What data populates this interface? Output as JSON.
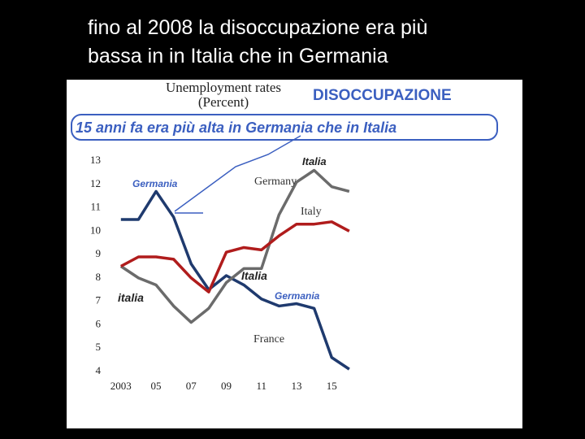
{
  "slide_title": [
    "fino al 2008 la disoccupazione era più",
    "bassa in in Italia che in Germania"
  ],
  "chart_data": {
    "type": "line",
    "title": "Unemployment rates",
    "subtitle": "(Percent)",
    "annotations": [
      "DISOCCUPAZIONE",
      "15 anni fa era più alta in Germania che in Italia",
      "Germania",
      "Italia",
      "italia",
      "Italia",
      "Germania"
    ],
    "x": [
      2003,
      2004,
      2005,
      2006,
      2007,
      2008,
      2009,
      2010,
      2011,
      2012,
      2013,
      2014,
      2015,
      2016
    ],
    "series": [
      {
        "name": "Germany",
        "color": "#1f3a6e",
        "values": [
          10.5,
          10.5,
          11.7,
          10.6,
          8.6,
          7.5,
          8.1,
          7.7,
          7.1,
          6.8,
          6.9,
          6.7,
          4.6,
          4.1
        ]
      },
      {
        "name": "Italy",
        "color": "#6b6b6b",
        "values": [
          8.5,
          8.0,
          7.7,
          6.8,
          6.1,
          6.7,
          7.8,
          8.4,
          8.4,
          10.7,
          12.1,
          12.6,
          11.9,
          11.7
        ]
      },
      {
        "name": "France",
        "color": "#b01c1c",
        "values": [
          8.5,
          8.9,
          8.9,
          8.8,
          8.0,
          7.4,
          9.1,
          9.3,
          9.2,
          9.8,
          10.3,
          10.3,
          10.4,
          10.0
        ]
      }
    ],
    "xlim": [
      2002.5,
      2016.7
    ],
    "ylim": [
      4,
      13
    ],
    "xticks": [
      2003,
      {
        "value": 2005,
        "label": "05"
      },
      {
        "value": 2007,
        "label": "07"
      },
      {
        "value": 2009,
        "label": "09"
      },
      {
        "value": 2011,
        "label": "11"
      },
      {
        "value": 2013,
        "label": "13"
      },
      {
        "value": 2015,
        "label": "15"
      }
    ],
    "yticks": [
      4,
      5,
      6,
      7,
      8,
      9,
      10,
      11,
      12,
      13
    ],
    "grid": false
  }
}
